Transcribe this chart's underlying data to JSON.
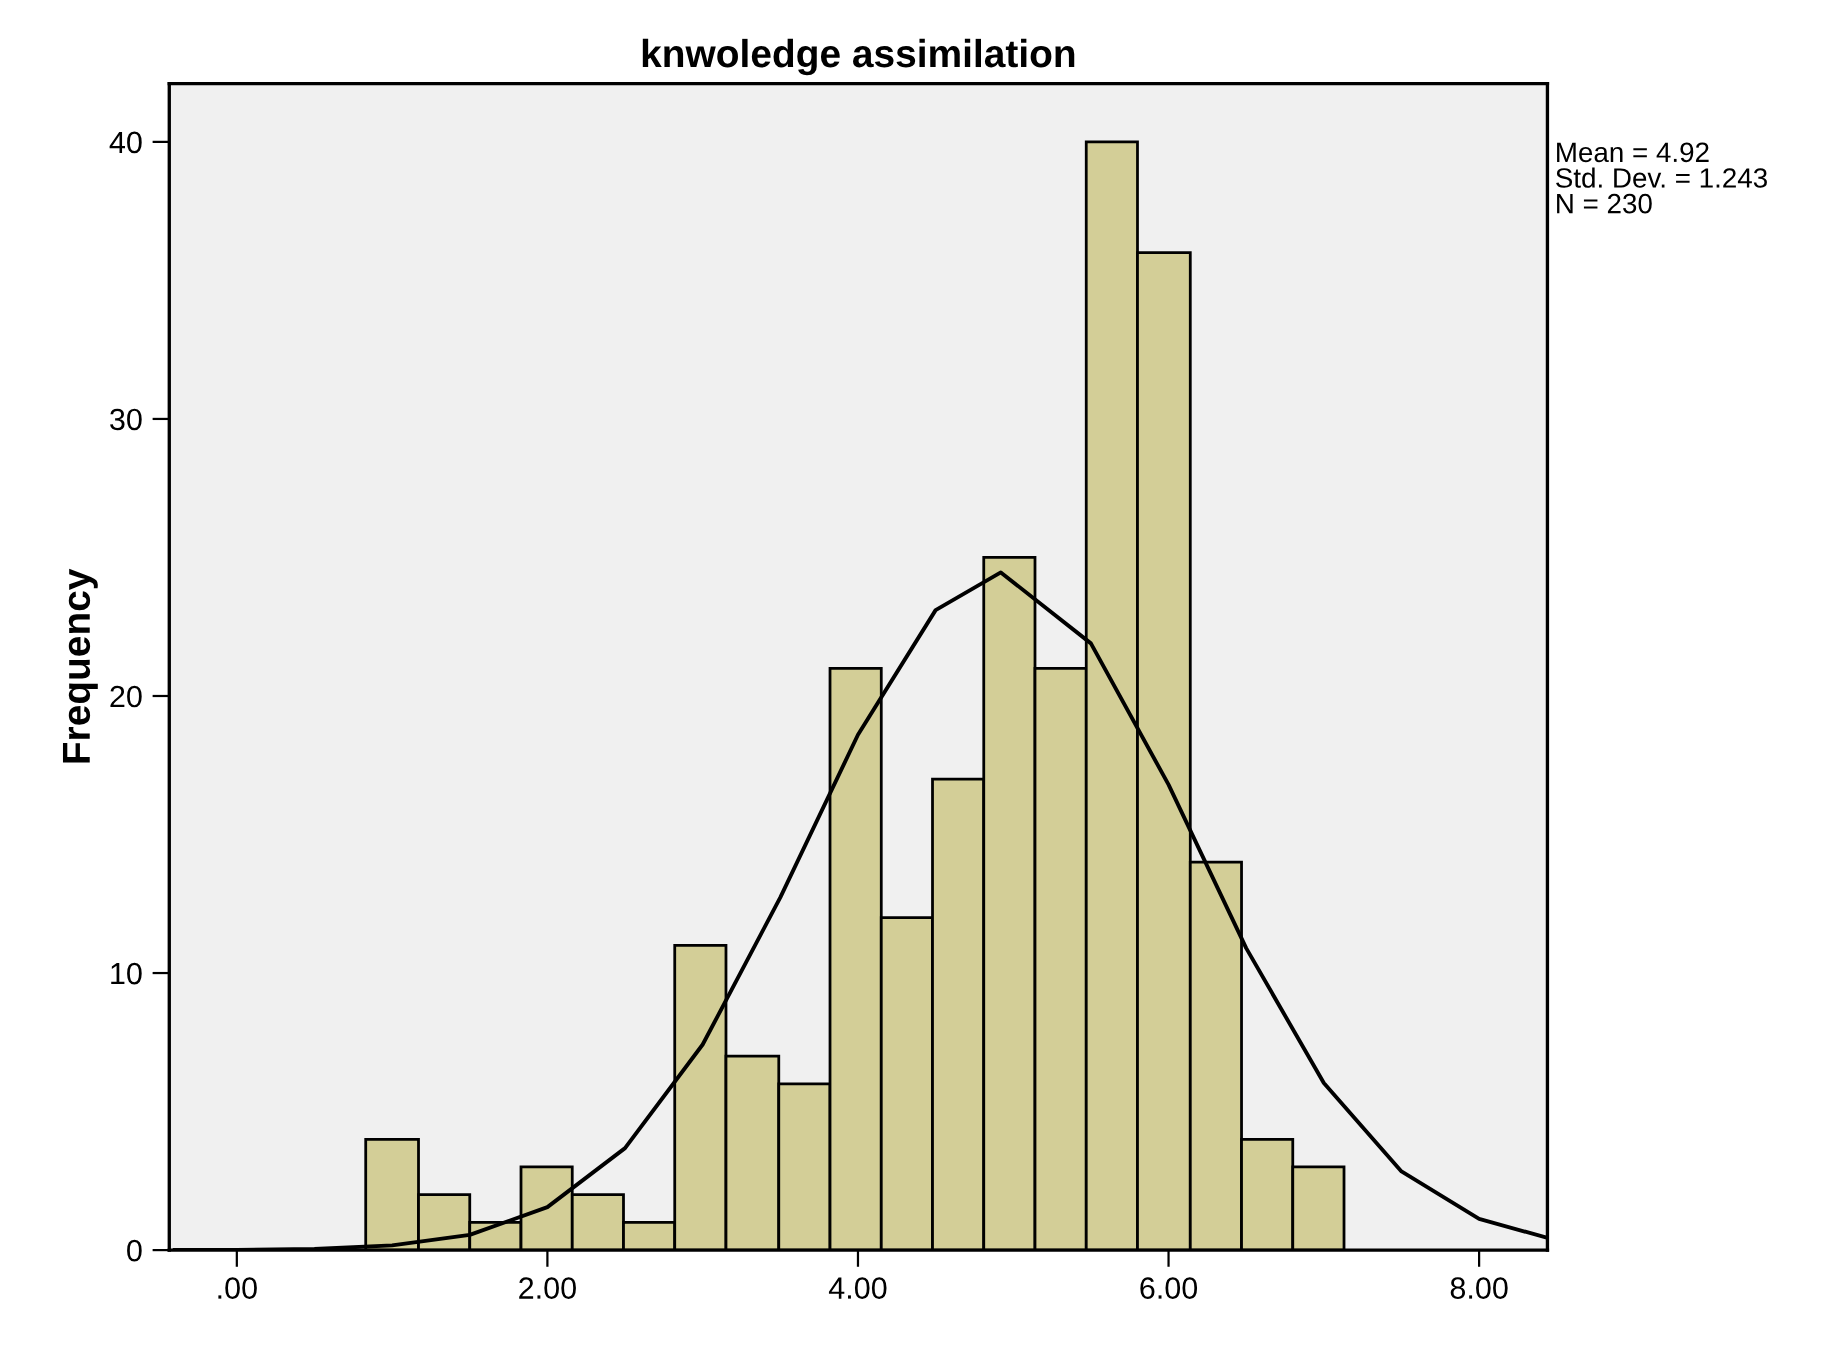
{
  "chart_data": {
    "type": "histogram",
    "title": "knwoledge assimilation",
    "ylabel": "Frequency",
    "bins": [
      0.83,
      1.17,
      1.5,
      1.83,
      2.16,
      2.49,
      2.82,
      3.15,
      3.49,
      3.82,
      4.15,
      4.48,
      4.81,
      5.14,
      5.47,
      5.8,
      6.14,
      6.47,
      6.8,
      7.13
    ],
    "values": [
      4,
      2,
      1,
      3,
      2,
      1,
      11,
      7,
      6,
      21,
      12,
      17,
      25,
      21,
      40,
      36,
      14,
      4,
      3
    ],
    "color": "#d3ce97",
    "series": [
      {
        "type": "line",
        "color": "#000000",
        "x": [
          -0.4,
          0,
          0.5,
          1.0,
          1.5,
          2.0,
          2.5,
          3.0,
          3.5,
          4.0,
          4.5,
          4.92,
          5.5,
          6.0,
          6.5,
          7.0,
          7.5,
          8.0,
          8.44
        ],
        "values": [
          0.003,
          0.01,
          0.04,
          0.17,
          0.55,
          1.55,
          3.68,
          7.42,
          12.73,
          18.6,
          23.1,
          24.46,
          21.9,
          16.8,
          10.9,
          6.03,
          2.84,
          1.13,
          0.44
        ]
      }
    ],
    "xlim": [
      -0.435,
      8.44
    ],
    "xticks": [
      {
        "value": 0,
        "label": ".00"
      },
      {
        "value": 2,
        "label": "2.00"
      },
      {
        "value": 4,
        "label": "4.00"
      },
      {
        "value": 6,
        "label": "6.00"
      },
      {
        "value": 8,
        "label": "8.00"
      }
    ],
    "ylim": [
      0,
      42.1
    ],
    "yticks": [
      0,
      10,
      20,
      30,
      40
    ],
    "grid": false,
    "annotations": [
      "Mean = 4.92",
      "Std. Dev. = 1.243",
      "N = 230"
    ]
  }
}
